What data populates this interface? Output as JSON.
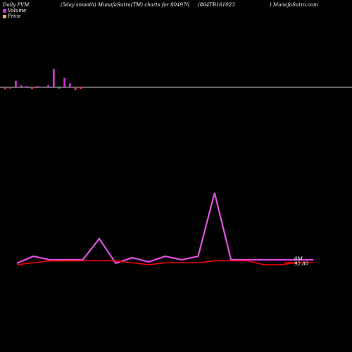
{
  "header": {
    "left": "Daily PVM",
    "mid": "(5day smooth) MunafaSutra(TM) charts for 804976",
    "code": "(864TB161023",
    "right": ") MunafaSutra.com"
  },
  "legend": {
    "volume_label": "Volume",
    "price_label": "Price"
  },
  "labels": {
    "volume_end": "0M",
    "price_end": "92.80"
  },
  "colors": {
    "volume_line": "#cc33cc",
    "price_line": "#ff0000",
    "bar_up": "#cc33cc",
    "bar_down": "#ff3355",
    "bar_neutral": "#33cc33",
    "baseline": "#cccccc"
  },
  "chart_data": [
    {
      "type": "bar",
      "name": "pvm-bars",
      "values": [
        -5,
        -3,
        10,
        3,
        2,
        -4,
        2,
        1,
        3,
        28,
        -3,
        14,
        6,
        -7,
        -4
      ],
      "signs": [
        "down",
        "up",
        "up",
        "up",
        "up",
        "down",
        "up",
        "up",
        "up",
        "up",
        "neutral",
        "up",
        "up",
        "down",
        "down"
      ],
      "ylim": [
        -10,
        30
      ]
    },
    {
      "type": "line",
      "series": [
        {
          "name": "Volume",
          "values": [
            0,
            10,
            5,
            5,
            5,
            35,
            0,
            8,
            2,
            10,
            5,
            10,
            100,
            5,
            5,
            5,
            5,
            5,
            5
          ]
        },
        {
          "name": "Price",
          "values": [
            92.0,
            92.8,
            93.6,
            93.6,
            93.6,
            93.6,
            93.6,
            92.8,
            92.0,
            92.8,
            92.8,
            92.8,
            93.6,
            93.6,
            93.6,
            92.0,
            92.0,
            92.8,
            92.8
          ]
        }
      ]
    }
  ]
}
